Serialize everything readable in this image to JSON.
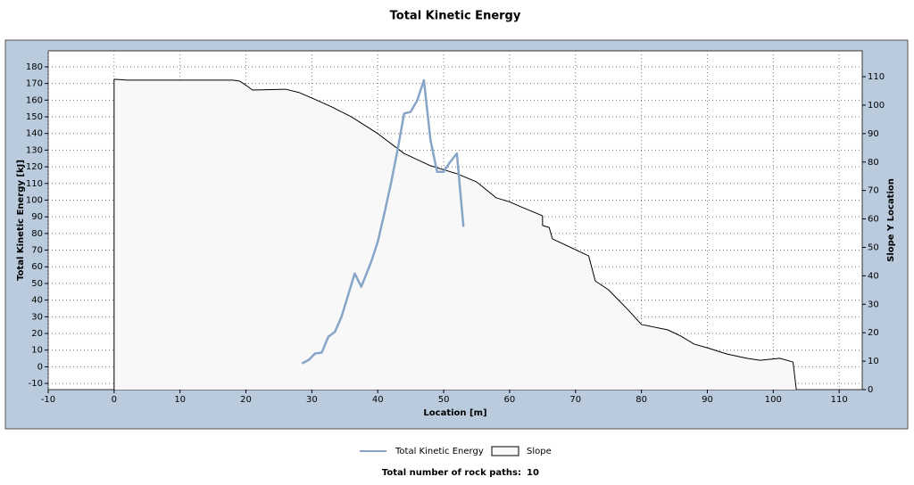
{
  "chart_data": {
    "type": "line",
    "title": "Total Kinetic Energy",
    "x_label": "Location [m]",
    "y_label": "Total Kinetic Energy [kJ]",
    "y2_label": "Slope Y Location",
    "xlim": [
      -10,
      113.5
    ],
    "xticks": [
      -10,
      0,
      10,
      20,
      30,
      40,
      50,
      60,
      70,
      80,
      90,
      100,
      110
    ],
    "ylim": [
      -13.7,
      189.6
    ],
    "yticks": [
      -10,
      0,
      10,
      20,
      30,
      40,
      50,
      60,
      70,
      80,
      90,
      100,
      110,
      120,
      130,
      140,
      150,
      160,
      170,
      180
    ],
    "y2lim": [
      0,
      119.1
    ],
    "y2ticks": [
      0,
      10,
      20,
      30,
      40,
      50,
      60,
      70,
      80,
      90,
      100,
      110
    ],
    "grid": true,
    "series": [
      {
        "name": "Total Kinetic Energy",
        "color": "#87a5c8",
        "style": "line",
        "x": [
          28.5,
          29.5,
          30.5,
          31.5,
          32.5,
          33.5,
          34.5,
          36.5,
          37.5,
          39,
          40,
          41,
          42,
          43,
          44,
          45,
          46,
          47,
          48,
          49,
          50,
          51,
          52,
          53
        ],
        "values": [
          2,
          4,
          8,
          8.5,
          18,
          21,
          30,
          56,
          48,
          63,
          75,
          92,
          110,
          130,
          152,
          153,
          160,
          172,
          136,
          117,
          117,
          123,
          128,
          84
        ]
      },
      {
        "name": "Slope",
        "color": "#000000",
        "fill": "#f8f8f8",
        "style": "area",
        "axis": "y2",
        "x": [
          0,
          0,
          2,
          18,
          19,
          20,
          21,
          26,
          28,
          30,
          33,
          36,
          40,
          44,
          48,
          52,
          55,
          58,
          60,
          62,
          65,
          65,
          66,
          66.5,
          70,
          72,
          73,
          75,
          78,
          80,
          84,
          86,
          88,
          90,
          93,
          96,
          98,
          101,
          103,
          103.5
        ],
        "values": [
          0,
          109.1,
          108.8,
          108.8,
          108.5,
          107,
          105.3,
          105.6,
          104.5,
          102.5,
          99.4,
          95.9,
          90,
          83,
          78.7,
          75.9,
          73,
          67.4,
          66,
          64,
          61.1,
          57.7,
          57,
          53,
          49.2,
          47,
          38.2,
          35.1,
          28,
          22.9,
          21,
          18.8,
          16,
          14.7,
          12.5,
          11,
          10.3,
          11,
          9.7,
          0
        ]
      }
    ],
    "footer": {
      "label": "Total number of rock paths:",
      "value": 10
    }
  }
}
